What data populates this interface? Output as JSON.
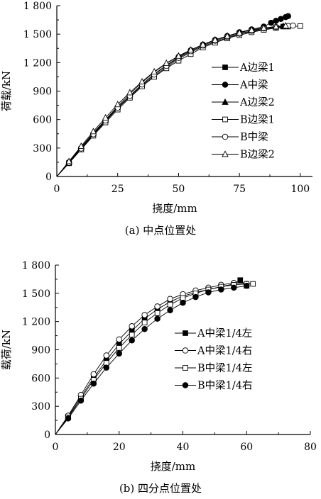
{
  "chart_data": [
    {
      "type": "line",
      "caption": "(a) 中点位置处",
      "xlabel": "挠度/mm",
      "ylabel": "荷载/kN",
      "xlim": [
        0,
        105
      ],
      "ylim": [
        0,
        1800
      ],
      "xticks": [
        "0",
        "25",
        "50",
        "75",
        "100"
      ],
      "yticks": [
        "0",
        "300",
        "600",
        "900",
        "1 200",
        "1 500",
        "1 800"
      ],
      "legend_position": "right",
      "series": [
        {
          "name": "A边梁1",
          "marker": "square-filled",
          "x": [
            0,
            5,
            10,
            15,
            20,
            25,
            30,
            35,
            40,
            45,
            50,
            55,
            60,
            65,
            70,
            75,
            80,
            85,
            90,
            93
          ],
          "y": [
            0,
            140,
            290,
            440,
            580,
            720,
            840,
            960,
            1060,
            1150,
            1240,
            1310,
            1370,
            1420,
            1460,
            1500,
            1530,
            1550,
            1570,
            1580
          ]
        },
        {
          "name": "A中梁",
          "marker": "circle-filled",
          "x": [
            0,
            5,
            10,
            15,
            20,
            25,
            30,
            35,
            40,
            45,
            50,
            55,
            60,
            65,
            70,
            75,
            80,
            85,
            88,
            90,
            92,
            94,
            95
          ],
          "y": [
            0,
            150,
            300,
            450,
            590,
            730,
            850,
            970,
            1080,
            1170,
            1260,
            1330,
            1390,
            1440,
            1480,
            1520,
            1550,
            1580,
            1620,
            1640,
            1660,
            1680,
            1690
          ]
        },
        {
          "name": "A边梁2",
          "marker": "triangle-filled",
          "x": [
            0,
            5,
            10,
            15,
            20,
            25,
            30,
            35,
            40,
            45,
            50,
            55,
            60,
            65,
            70,
            75,
            80,
            85,
            90,
            93
          ],
          "y": [
            0,
            155,
            310,
            460,
            600,
            740,
            870,
            990,
            1100,
            1190,
            1270,
            1330,
            1390,
            1440,
            1480,
            1515,
            1545,
            1565,
            1580,
            1585
          ]
        },
        {
          "name": "B边梁1",
          "marker": "square-open",
          "x": [
            0,
            5,
            10,
            15,
            20,
            25,
            30,
            35,
            40,
            45,
            50,
            55,
            60,
            65,
            70,
            75,
            80,
            85,
            90,
            95,
            100
          ],
          "y": [
            0,
            140,
            285,
            430,
            570,
            705,
            830,
            950,
            1050,
            1140,
            1220,
            1290,
            1360,
            1410,
            1455,
            1490,
            1520,
            1545,
            1565,
            1580,
            1585
          ]
        },
        {
          "name": "B中梁",
          "marker": "circle-open",
          "x": [
            0,
            5,
            10,
            15,
            20,
            25,
            30,
            35,
            40,
            45,
            50,
            55,
            60,
            65,
            70,
            75,
            80,
            85,
            90,
            95,
            97
          ],
          "y": [
            0,
            145,
            295,
            445,
            590,
            725,
            850,
            970,
            1075,
            1165,
            1250,
            1320,
            1380,
            1430,
            1470,
            1505,
            1535,
            1560,
            1575,
            1585,
            1590
          ]
        },
        {
          "name": "B边梁2",
          "marker": "triangle-open",
          "x": [
            0,
            5,
            10,
            15,
            20,
            25,
            30,
            35,
            40,
            45,
            50,
            55,
            60,
            65,
            70,
            75,
            80,
            85,
            90,
            94
          ],
          "y": [
            0,
            160,
            320,
            475,
            620,
            760,
            885,
            1000,
            1105,
            1195,
            1270,
            1335,
            1390,
            1440,
            1480,
            1515,
            1545,
            1565,
            1580,
            1590
          ]
        }
      ]
    },
    {
      "type": "line",
      "caption": "(b) 四分点位置处",
      "xlabel": "挠度/mm",
      "ylabel": "载荷/kN",
      "xlim": [
        0,
        80
      ],
      "ylim": [
        0,
        1800
      ],
      "xticks": [
        "0",
        "20",
        "40",
        "60",
        "80"
      ],
      "yticks": [
        "0",
        "300",
        "600",
        "900",
        "1 200",
        "1 500",
        "1 800"
      ],
      "legend_position": "right",
      "series": [
        {
          "name": "A中梁1/4左",
          "marker": "square-filled",
          "x": [
            0,
            4,
            8,
            12,
            16,
            20,
            24,
            28,
            32,
            36,
            40,
            44,
            48,
            52,
            56,
            58,
            60
          ],
          "y": [
            0,
            190,
            400,
            600,
            790,
            960,
            1100,
            1230,
            1330,
            1410,
            1470,
            1510,
            1540,
            1570,
            1600,
            1640,
            1580
          ]
        },
        {
          "name": "A中梁1/4右",
          "marker": "circle-open",
          "x": [
            0,
            4,
            8,
            12,
            16,
            20,
            24,
            28,
            32,
            36,
            40,
            44,
            48,
            52,
            56,
            60
          ],
          "y": [
            0,
            200,
            420,
            640,
            840,
            1010,
            1150,
            1270,
            1360,
            1440,
            1490,
            1530,
            1560,
            1590,
            1610,
            1600
          ]
        },
        {
          "name": "B中梁1/4左",
          "marker": "square-open",
          "x": [
            0,
            4,
            8,
            12,
            16,
            20,
            24,
            28,
            32,
            36,
            40,
            44,
            48,
            52,
            56,
            60,
            62
          ],
          "y": [
            0,
            180,
            380,
            580,
            760,
            920,
            1060,
            1190,
            1290,
            1380,
            1450,
            1500,
            1540,
            1570,
            1590,
            1600,
            1600
          ]
        },
        {
          "name": "B中梁1/4右",
          "marker": "circle-filled",
          "x": [
            0,
            4,
            8,
            12,
            16,
            20,
            24,
            28,
            32,
            36,
            40,
            44,
            48,
            52,
            56,
            60
          ],
          "y": [
            0,
            170,
            360,
            540,
            710,
            860,
            1000,
            1120,
            1230,
            1320,
            1400,
            1460,
            1510,
            1540,
            1560,
            1580
          ]
        }
      ]
    }
  ]
}
